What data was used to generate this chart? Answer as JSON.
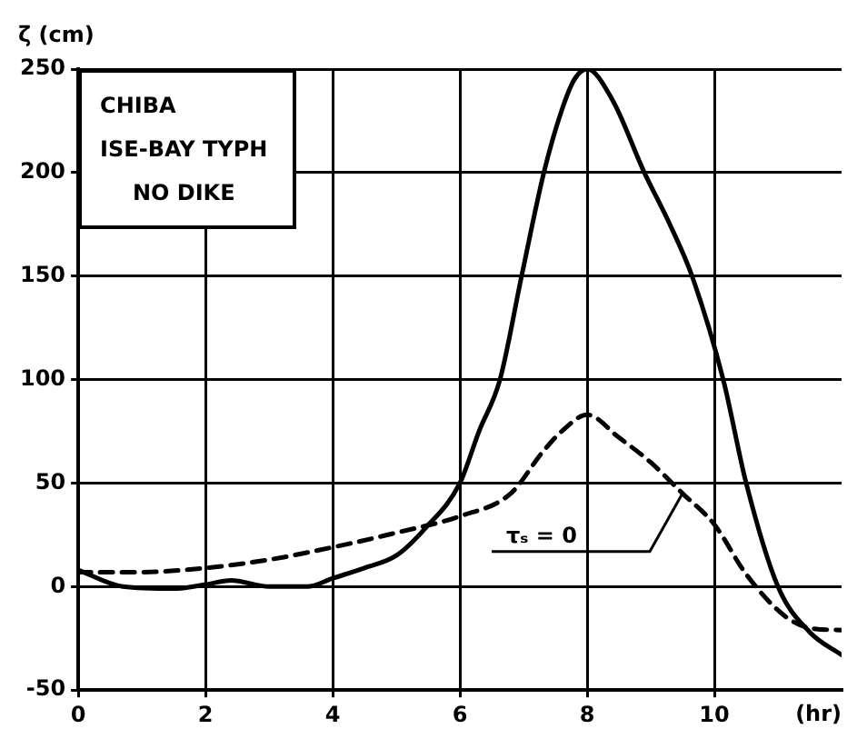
{
  "chart_data": {
    "type": "line",
    "ylabel": "ζ (cm)",
    "xlabel": "(hr)",
    "annotations": [
      "CHIBA",
      "ISE-BAY TYPH",
      "NO DIKE",
      {
        "text": "τₛ = 0",
        "x": 9.5,
        "y": 45
      }
    ],
    "xlim": [
      0,
      12
    ],
    "xticks": [
      0,
      2,
      4,
      6,
      8,
      10
    ],
    "ylim": [
      -50,
      250
    ],
    "yticks": [
      -50,
      0,
      50,
      100,
      150,
      200,
      250
    ],
    "grid": true,
    "legend": false,
    "marker": "none",
    "series": [
      {
        "color": "#000000",
        "line_style": "solid",
        "x": [
          0,
          0.7,
          1.5,
          2,
          2.4,
          3,
          3.6,
          4,
          4.5,
          5,
          5.45,
          6,
          6.3,
          6.63,
          6.97,
          7.32,
          7.6,
          7.8,
          8,
          8.4,
          8.9,
          9.3,
          9.65,
          10.14,
          10.5,
          11,
          11.5,
          12
        ],
        "values": [
          8,
          0,
          -1,
          1,
          3,
          0,
          0,
          4,
          9,
          15,
          28,
          50,
          75,
          100,
          150,
          200,
          230,
          245,
          250,
          235,
          200,
          175,
          150,
          100,
          50,
          0,
          -22,
          -33
        ]
      },
      {
        "color": "#000000",
        "line_style": "dashed",
        "x": [
          0,
          1,
          2,
          3,
          4,
          5,
          6,
          6.8,
          7.3,
          7.6,
          8,
          8.5,
          9,
          9.5,
          10,
          10.5,
          11.1,
          11.5,
          12
        ],
        "values": [
          7,
          7,
          9,
          13,
          19,
          26,
          34,
          45,
          65,
          75,
          83,
          72,
          60,
          45,
          30,
          6,
          -14,
          -20,
          -21
        ]
      }
    ]
  }
}
